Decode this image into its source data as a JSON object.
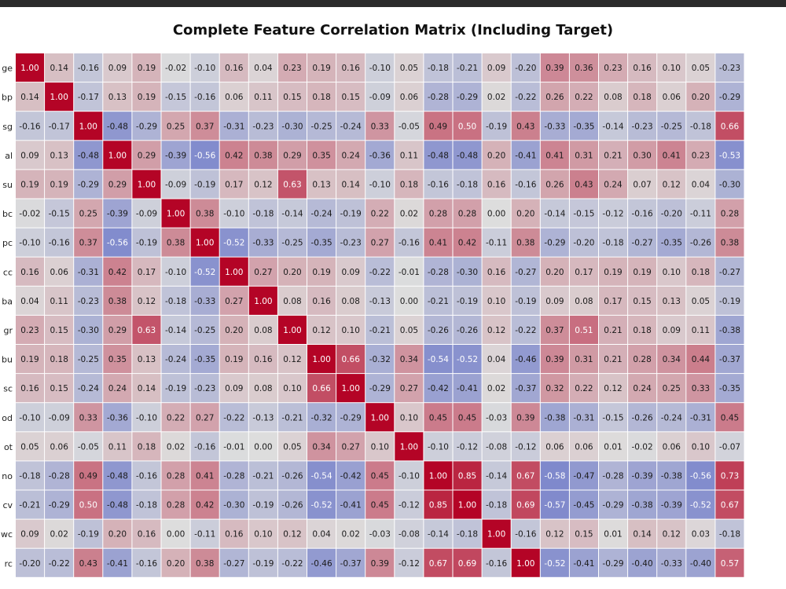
{
  "chart_data": {
    "type": "heatmap",
    "title": "Complete Feature Correlation Matrix (Including Target)",
    "row_labels": [
      "ge",
      "bp",
      "sg",
      "al",
      "su",
      "bc",
      "pc",
      "cc",
      "ba",
      "gr",
      "bu",
      "sc",
      "od",
      "ot",
      "no",
      "cv",
      "wc",
      "rc"
    ],
    "n_columns": 25,
    "color_scale": {
      "name": "coolwarm",
      "min": -1,
      "max": 1,
      "low": "#3b4cc0",
      "mid": "#dddddd",
      "high": "#b40426"
    },
    "values": [
      [
        1.0,
        0.14,
        -0.16,
        0.09,
        0.19,
        -0.02,
        -0.1,
        0.16,
        0.04,
        0.23,
        0.19,
        0.16,
        -0.1,
        0.05,
        -0.18,
        -0.21,
        0.09,
        -0.2,
        0.39,
        0.36,
        0.23,
        0.16,
        0.1,
        0.05,
        -0.23
      ],
      [
        0.14,
        1.0,
        -0.17,
        0.13,
        0.19,
        -0.15,
        -0.16,
        0.06,
        0.11,
        0.15,
        0.18,
        0.15,
        -0.09,
        0.06,
        -0.28,
        -0.29,
        0.02,
        -0.22,
        0.26,
        0.22,
        0.08,
        0.18,
        0.06,
        0.2,
        -0.29
      ],
      [
        -0.16,
        -0.17,
        1.0,
        -0.48,
        -0.29,
        0.25,
        0.37,
        -0.31,
        -0.23,
        -0.3,
        -0.25,
        -0.24,
        0.33,
        -0.05,
        0.49,
        0.5,
        -0.19,
        0.43,
        -0.33,
        -0.35,
        -0.14,
        -0.23,
        -0.25,
        -0.18,
        0.66
      ],
      [
        0.09,
        0.13,
        -0.48,
        1.0,
        0.29,
        -0.39,
        -0.56,
        0.42,
        0.38,
        0.29,
        0.35,
        0.24,
        -0.36,
        0.11,
        -0.48,
        -0.48,
        0.2,
        -0.41,
        0.41,
        0.31,
        0.21,
        0.3,
        0.41,
        0.23,
        -0.53
      ],
      [
        0.19,
        0.19,
        -0.29,
        0.29,
        1.0,
        -0.09,
        -0.19,
        0.17,
        0.12,
        0.63,
        0.13,
        0.14,
        -0.1,
        0.18,
        -0.16,
        -0.18,
        0.16,
        -0.16,
        0.26,
        0.43,
        0.24,
        0.07,
        0.12,
        0.04,
        -0.3
      ],
      [
        -0.02,
        -0.15,
        0.25,
        -0.39,
        -0.09,
        1.0,
        0.38,
        -0.1,
        -0.18,
        -0.14,
        -0.24,
        -0.19,
        0.22,
        0.02,
        0.28,
        0.28,
        0.0,
        0.2,
        -0.14,
        -0.15,
        -0.12,
        -0.16,
        -0.2,
        -0.11,
        0.28
      ],
      [
        -0.1,
        -0.16,
        0.37,
        -0.56,
        -0.19,
        0.38,
        1.0,
        -0.52,
        -0.33,
        -0.25,
        -0.35,
        -0.23,
        0.27,
        -0.16,
        0.41,
        0.42,
        -0.11,
        0.38,
        -0.29,
        -0.2,
        -0.18,
        -0.27,
        -0.35,
        -0.26,
        0.38
      ],
      [
        0.16,
        0.06,
        -0.31,
        0.42,
        0.17,
        -0.1,
        -0.52,
        1.0,
        0.27,
        0.2,
        0.19,
        0.09,
        -0.22,
        -0.01,
        -0.28,
        -0.3,
        0.16,
        -0.27,
        0.2,
        0.17,
        0.19,
        0.19,
        0.1,
        0.18,
        -0.27
      ],
      [
        0.04,
        0.11,
        -0.23,
        0.38,
        0.12,
        -0.18,
        -0.33,
        0.27,
        1.0,
        0.08,
        0.16,
        0.08,
        -0.13,
        -0.0,
        -0.21,
        -0.19,
        0.1,
        -0.19,
        0.09,
        0.08,
        0.17,
        0.15,
        0.13,
        0.05,
        -0.19
      ],
      [
        0.23,
        0.15,
        -0.3,
        0.29,
        0.63,
        -0.14,
        -0.25,
        0.2,
        0.08,
        1.0,
        0.12,
        0.1,
        -0.21,
        0.05,
        -0.26,
        -0.26,
        0.12,
        -0.22,
        0.37,
        0.51,
        0.21,
        0.18,
        0.09,
        0.11,
        -0.38
      ],
      [
        0.19,
        0.18,
        -0.25,
        0.35,
        0.13,
        -0.24,
        -0.35,
        0.19,
        0.16,
        0.12,
        1.0,
        0.66,
        -0.32,
        0.34,
        -0.54,
        -0.52,
        0.04,
        -0.46,
        0.39,
        0.31,
        0.21,
        0.28,
        0.34,
        0.44,
        -0.37
      ],
      [
        0.16,
        0.15,
        -0.24,
        0.24,
        0.14,
        -0.19,
        -0.23,
        0.09,
        0.08,
        0.1,
        0.66,
        1.0,
        -0.29,
        0.27,
        -0.42,
        -0.41,
        0.02,
        -0.37,
        0.32,
        0.22,
        0.12,
        0.24,
        0.25,
        0.33,
        -0.35
      ],
      [
        -0.1,
        -0.09,
        0.33,
        -0.36,
        -0.1,
        0.22,
        0.27,
        -0.22,
        -0.13,
        -0.21,
        -0.32,
        -0.29,
        1.0,
        0.1,
        0.45,
        0.45,
        -0.03,
        0.39,
        -0.38,
        -0.31,
        -0.15,
        -0.26,
        -0.24,
        -0.31,
        0.45
      ],
      [
        0.05,
        0.06,
        -0.05,
        0.11,
        0.18,
        0.02,
        -0.16,
        -0.01,
        -0.0,
        0.05,
        0.34,
        0.27,
        0.1,
        1.0,
        -0.1,
        -0.12,
        -0.08,
        -0.12,
        0.06,
        0.06,
        0.01,
        -0.02,
        0.06,
        0.1,
        -0.07
      ],
      [
        -0.18,
        -0.28,
        0.49,
        -0.48,
        -0.16,
        0.28,
        0.41,
        -0.28,
        -0.21,
        -0.26,
        -0.54,
        -0.42,
        0.45,
        -0.1,
        1.0,
        0.85,
        -0.14,
        0.67,
        -0.58,
        -0.47,
        -0.28,
        -0.39,
        -0.38,
        -0.56,
        0.73
      ],
      [
        -0.21,
        -0.29,
        0.5,
        -0.48,
        -0.18,
        0.28,
        0.42,
        -0.3,
        -0.19,
        -0.26,
        -0.52,
        -0.41,
        0.45,
        -0.12,
        0.85,
        1.0,
        -0.18,
        0.69,
        -0.57,
        -0.45,
        -0.29,
        -0.38,
        -0.39,
        -0.52,
        0.67
      ],
      [
        0.09,
        0.02,
        -0.19,
        0.2,
        0.16,
        0.0,
        -0.11,
        0.16,
        0.1,
        0.12,
        0.04,
        0.02,
        -0.03,
        -0.08,
        -0.14,
        -0.18,
        1.0,
        -0.16,
        0.12,
        0.15,
        0.01,
        0.14,
        0.12,
        0.03,
        -0.18
      ],
      [
        -0.2,
        -0.22,
        0.43,
        -0.41,
        -0.16,
        0.2,
        0.38,
        -0.27,
        -0.19,
        -0.22,
        -0.46,
        -0.37,
        0.39,
        -0.12,
        0.67,
        0.69,
        -0.16,
        1.0,
        -0.52,
        -0.41,
        -0.29,
        -0.4,
        -0.33,
        -0.4,
        0.57
      ]
    ]
  }
}
